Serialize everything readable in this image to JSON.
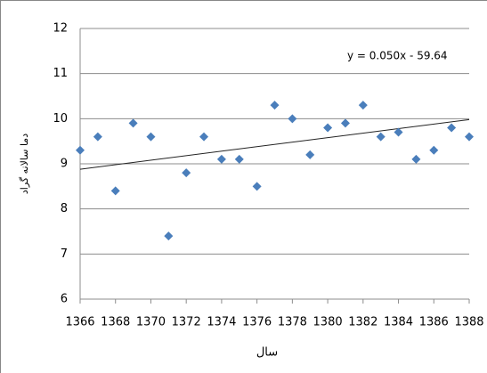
{
  "chart_data": {
    "type": "scatter",
    "x_label": "سال",
    "y_label": "دما سالانه گراد",
    "x": [
      1366,
      1367,
      1368,
      1369,
      1370,
      1371,
      1372,
      1373,
      1374,
      1375,
      1376,
      1377,
      1378,
      1379,
      1380,
      1381,
      1382,
      1383,
      1384,
      1385,
      1386,
      1387,
      1388
    ],
    "series": [
      {
        "color": "#4a7ebb",
        "values": [
          9.3,
          9.6,
          8.4,
          9.9,
          9.6,
          7.4,
          8.8,
          9.6,
          9.1,
          9.1,
          8.5,
          10.3,
          10.0,
          9.2,
          9.8,
          9.9,
          10.3,
          9.6,
          9.7,
          9.1,
          9.3,
          9.8,
          9.6
        ]
      }
    ],
    "trendline": {
      "label": "y = 0.050x - 59.64",
      "x": [
        1366,
        1388
      ],
      "values": [
        8.88,
        9.98
      ],
      "color": "#222222"
    },
    "xlim": [
      1366,
      1388
    ],
    "xticks": [
      1366,
      1368,
      1370,
      1372,
      1374,
      1376,
      1378,
      1380,
      1382,
      1384,
      1386,
      1388
    ],
    "ylim": [
      6,
      12
    ],
    "yticks": [
      6,
      7,
      8,
      9,
      10,
      11,
      12
    ],
    "grid": true
  }
}
